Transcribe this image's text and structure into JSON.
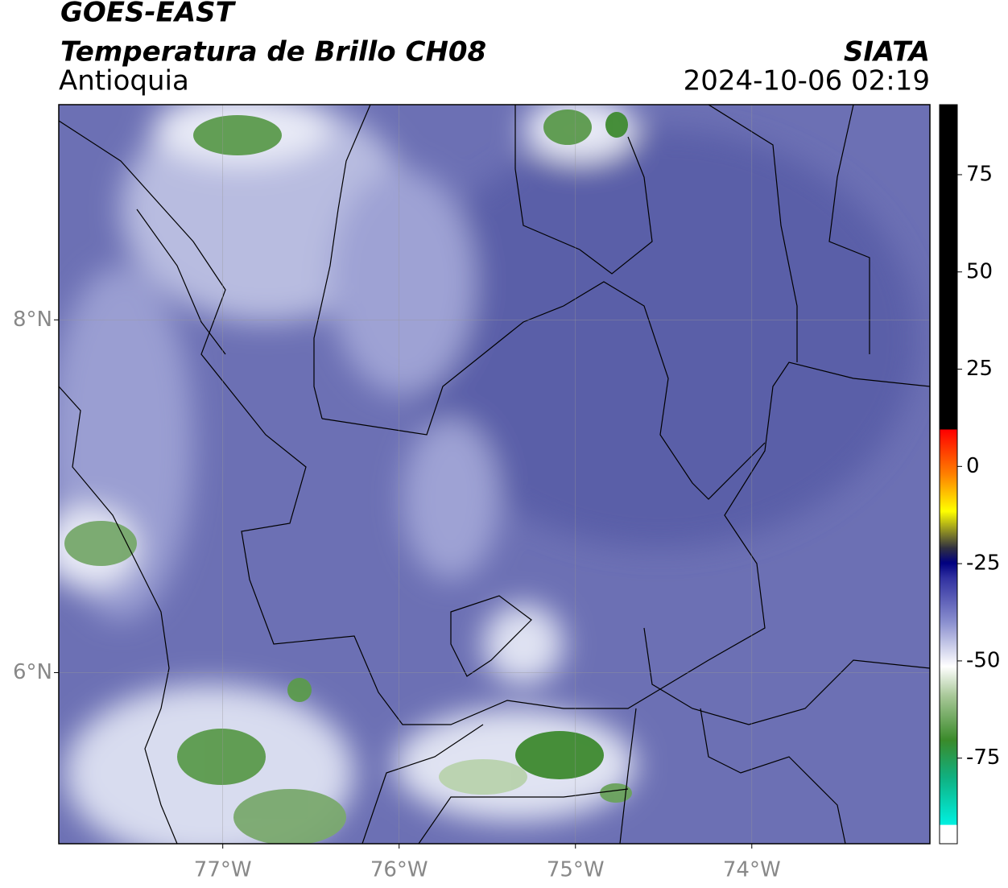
{
  "header": {
    "title": "GOES-EAST",
    "subtitle": "Temperatura de Brillo CH08",
    "region": "Antioquia",
    "source": "SIATA",
    "timestamp": "2024-10-06 02:19"
  },
  "map": {
    "xlim": [
      -77.93,
      -72.99
    ],
    "ylim": [
      5.03,
      9.22
    ],
    "xticks": [
      {
        "value": -77,
        "label": "77°W"
      },
      {
        "value": -76,
        "label": "76°W"
      },
      {
        "value": -75,
        "label": "75°W"
      },
      {
        "value": -74,
        "label": "74°W"
      }
    ],
    "yticks": [
      {
        "value": 8,
        "label": "8°N"
      },
      {
        "value": 6,
        "label": "6°N"
      }
    ]
  },
  "colorbar": {
    "lim": [
      -97,
      93
    ],
    "ticks": [
      75,
      50,
      25,
      0,
      -25,
      -50,
      -75
    ]
  }
}
